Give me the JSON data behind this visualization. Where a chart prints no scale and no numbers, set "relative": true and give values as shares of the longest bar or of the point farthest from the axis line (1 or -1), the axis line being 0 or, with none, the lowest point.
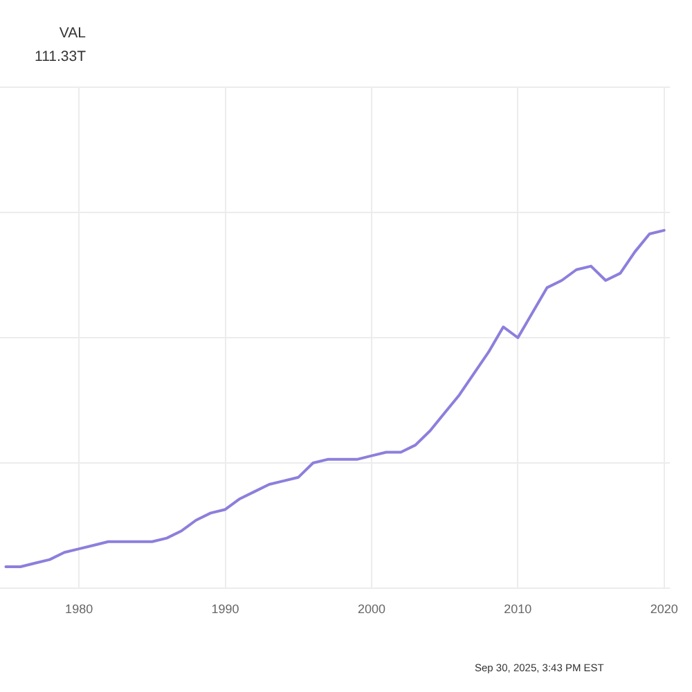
{
  "chart_data": {
    "type": "line",
    "relative": true,
    "x": [
      1975,
      1976,
      1977,
      1978,
      1979,
      1980,
      1981,
      1982,
      1983,
      1984,
      1985,
      1986,
      1987,
      1988,
      1989,
      1990,
      1991,
      1992,
      1993,
      1994,
      1995,
      1996,
      1997,
      1998,
      1999,
      2000,
      2001,
      2002,
      2003,
      2004,
      2005,
      2006,
      2007,
      2008,
      2009,
      2010,
      2011,
      2012,
      2013,
      2014,
      2015,
      2016,
      2017,
      2018,
      2019,
      2020
    ],
    "values": [
      0.06,
      0.06,
      0.07,
      0.08,
      0.1,
      0.11,
      0.12,
      0.13,
      0.13,
      0.13,
      0.13,
      0.14,
      0.16,
      0.19,
      0.21,
      0.22,
      0.25,
      0.27,
      0.29,
      0.3,
      0.31,
      0.35,
      0.36,
      0.36,
      0.36,
      0.37,
      0.38,
      0.38,
      0.4,
      0.44,
      0.49,
      0.54,
      0.6,
      0.66,
      0.73,
      0.7,
      0.77,
      0.84,
      0.86,
      0.89,
      0.9,
      0.86,
      0.88,
      0.94,
      0.99,
      1
    ],
    "color": "#8c7fdc",
    "xlim": [
      1974.6,
      2020.4
    ],
    "xticks": [
      1980,
      1990,
      2000,
      2010,
      2020
    ],
    "grid": true,
    "annotations": [
      "VAL",
      "111.33T",
      "Sep 30, 2025, 3:43 PM EST"
    ]
  }
}
